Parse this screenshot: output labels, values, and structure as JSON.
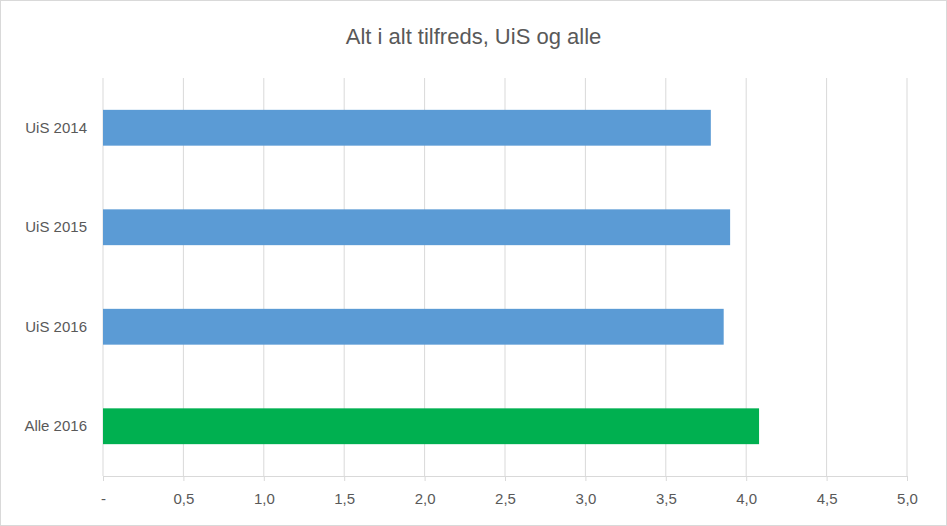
{
  "chart_data": {
    "type": "bar",
    "title": "Alt i alt tilfreds, UiS og alle",
    "orientation": "horizontal",
    "categories": [
      "UiS 2014",
      "UiS 2015",
      "UiS 2016",
      "Alle 2016"
    ],
    "values": [
      3.78,
      3.9,
      3.86,
      4.08
    ],
    "colors": [
      "#5b9bd5",
      "#5b9bd5",
      "#5b9bd5",
      "#00b050"
    ],
    "xlim": [
      0,
      5
    ],
    "xticks": [
      {
        "value": 0,
        "label": "-"
      },
      {
        "value": 0.5,
        "label": "0,5"
      },
      {
        "value": 1,
        "label": "1,0"
      },
      {
        "value": 1.5,
        "label": "1,5"
      },
      {
        "value": 2,
        "label": "2,0"
      },
      {
        "value": 2.5,
        "label": "2,5"
      },
      {
        "value": 3,
        "label": "3,0"
      },
      {
        "value": 3.5,
        "label": "3,5"
      },
      {
        "value": 4,
        "label": "4,0"
      },
      {
        "value": 4.5,
        "label": "4,5"
      },
      {
        "value": 5,
        "label": "5,0"
      }
    ],
    "grid": true
  }
}
